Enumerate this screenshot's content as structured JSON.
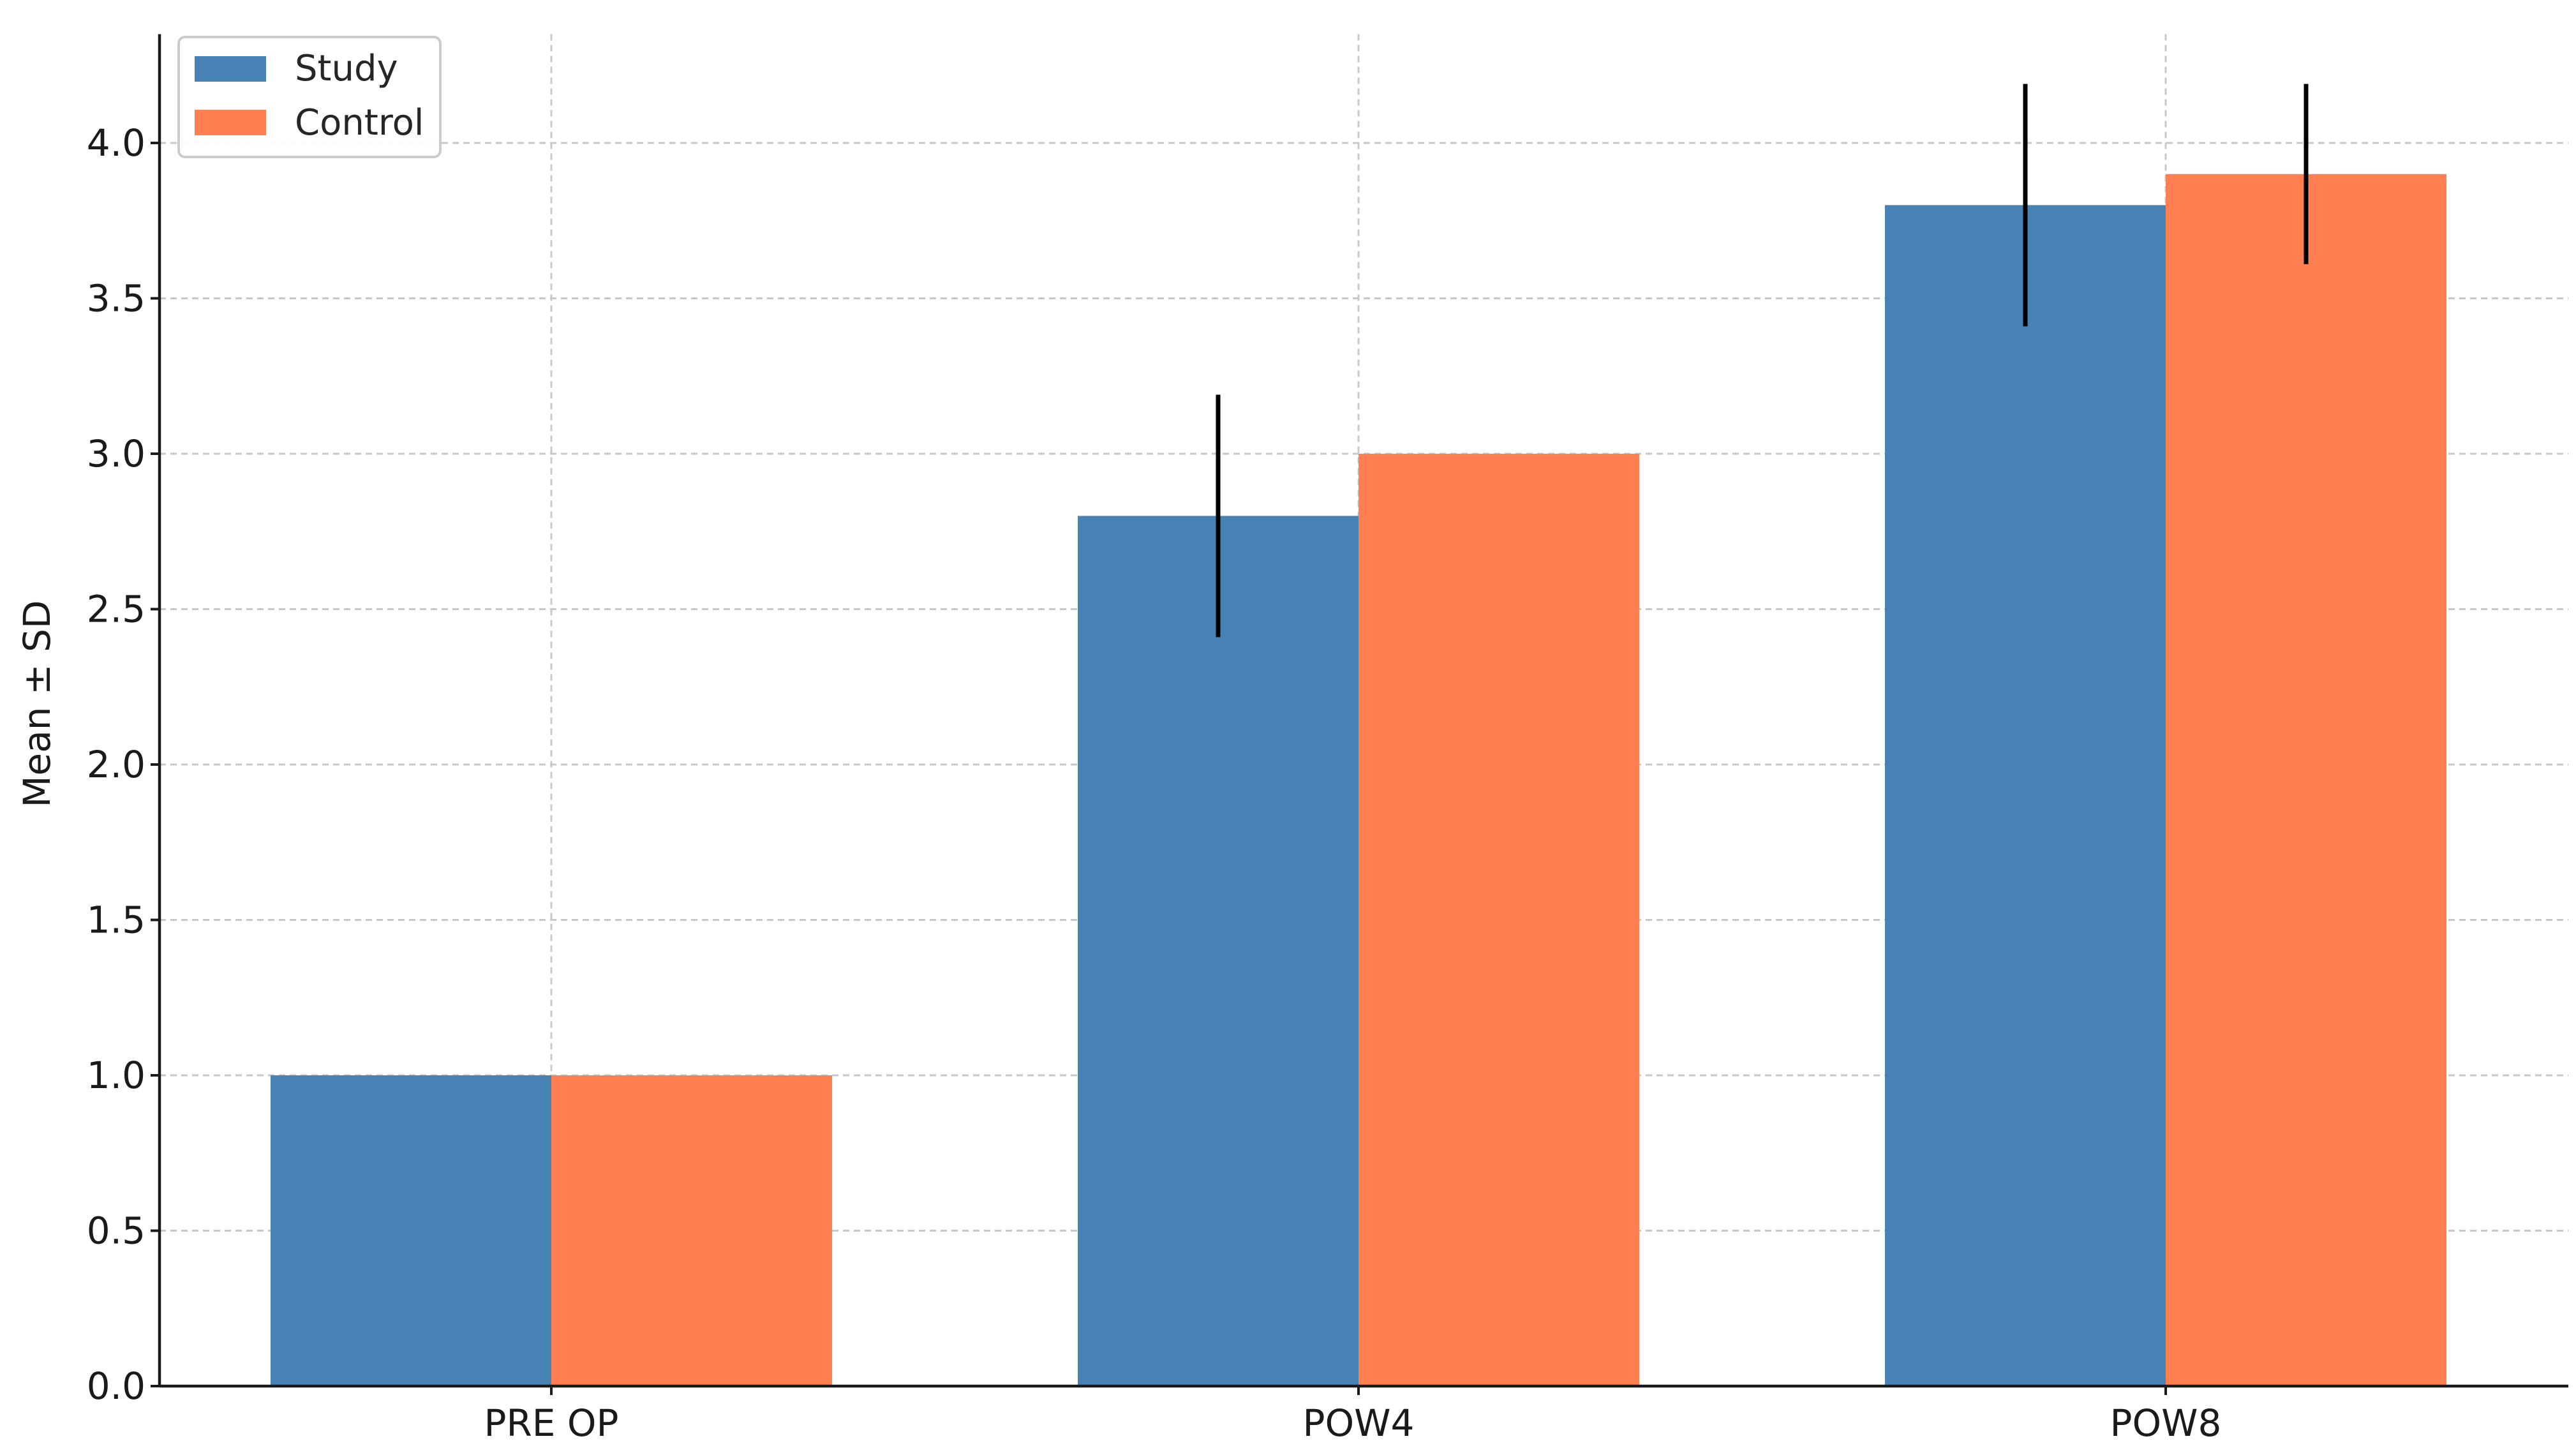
{
  "chart_data": {
    "type": "bar",
    "categories": [
      "PRE OP",
      "POW4",
      "POW8"
    ],
    "series": [
      {
        "name": "Study",
        "color": "#4682B4",
        "values": [
          1.0,
          2.8,
          3.8
        ],
        "sd": [
          0,
          0.39,
          0.39
        ]
      },
      {
        "name": "Control",
        "color": "#FF7F50",
        "values": [
          1.0,
          3.0,
          3.9
        ],
        "sd": [
          0,
          0,
          0.29
        ]
      }
    ],
    "title": "",
    "xlabel": "",
    "ylabel": "Mean ± SD",
    "ylim": [
      0,
      4.35
    ],
    "yticks": [
      0.0,
      0.5,
      1.0,
      1.5,
      2.0,
      2.5,
      3.0,
      3.5,
      4.0
    ],
    "ytick_labels": [
      "0.0",
      "0.5",
      "1.0",
      "1.5",
      "2.0",
      "2.5",
      "3.0",
      "3.5",
      "4.0"
    ],
    "grid": true,
    "legend_position": "top-left"
  }
}
